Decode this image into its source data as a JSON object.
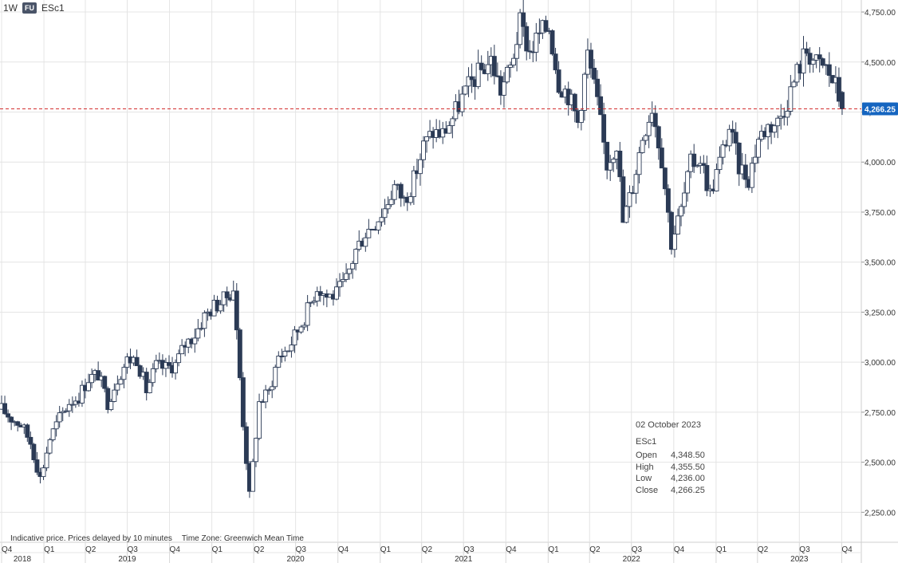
{
  "header": {
    "interval": "1W",
    "badge": "FU",
    "symbol": "ESc1"
  },
  "notice": {
    "delay": "Indicative price. Prices delayed by 10 minutes",
    "timezone": "Time Zone: Greenwich Mean Time"
  },
  "tooltip": {
    "date": "02 October 2023",
    "symbol": "ESc1",
    "rows": [
      {
        "label": "Open",
        "value": "4,348.50"
      },
      {
        "label": "High",
        "value": "4,355.50"
      },
      {
        "label": "Low",
        "value": "4,236.00"
      },
      {
        "label": "Close",
        "value": "4,266.25"
      }
    ]
  },
  "colors": {
    "candle": "#2b3a55",
    "grid": "#e4e4e4",
    "price_line": "#d32f2f",
    "price_label": "#1565c0"
  },
  "chart_data": {
    "type": "candlestick",
    "interval": "1W",
    "y_axis": {
      "range": [
        2100,
        4810
      ],
      "ticks": [
        2250,
        2500,
        2750,
        3000,
        3250,
        3500,
        3750,
        4000,
        4250,
        4500,
        4750
      ],
      "tick_labels": [
        "2,250.00",
        "2,500.00",
        "2,750.00",
        "3,000.00",
        "3,250.00",
        "3,500.00",
        "3,750.00",
        "4,000.00",
        "4,250.00",
        "4,500.00",
        "4,750.00"
      ]
    },
    "x_axis": {
      "start": "2018-10-01",
      "end": "2023-10-09",
      "quarters": [
        {
          "date": "2018-10-01",
          "label": "Q4"
        },
        {
          "date": "2019-01-01",
          "label": "Q1"
        },
        {
          "date": "2019-04-01",
          "label": "Q2"
        },
        {
          "date": "2019-07-01",
          "label": "Q3"
        },
        {
          "date": "2019-10-01",
          "label": "Q4"
        },
        {
          "date": "2020-01-01",
          "label": "Q1"
        },
        {
          "date": "2020-04-01",
          "label": "Q2"
        },
        {
          "date": "2020-07-01",
          "label": "Q3"
        },
        {
          "date": "2020-10-01",
          "label": "Q4"
        },
        {
          "date": "2021-01-01",
          "label": "Q1"
        },
        {
          "date": "2021-04-01",
          "label": "Q2"
        },
        {
          "date": "2021-07-01",
          "label": "Q3"
        },
        {
          "date": "2021-10-01",
          "label": "Q4"
        },
        {
          "date": "2022-01-01",
          "label": "Q1"
        },
        {
          "date": "2022-04-01",
          "label": "Q2"
        },
        {
          "date": "2022-07-01",
          "label": "Q3"
        },
        {
          "date": "2022-10-01",
          "label": "Q4"
        },
        {
          "date": "2023-01-01",
          "label": "Q1"
        },
        {
          "date": "2023-04-01",
          "label": "Q2"
        },
        {
          "date": "2023-07-01",
          "label": "Q3"
        },
        {
          "date": "2023-10-01",
          "label": "Q4"
        }
      ],
      "years": [
        {
          "date": "2018-11-15",
          "label": "2018"
        },
        {
          "date": "2019-07-01",
          "label": "2019"
        },
        {
          "date": "2020-07-01",
          "label": "2020"
        },
        {
          "date": "2021-07-01",
          "label": "2021"
        },
        {
          "date": "2022-07-01",
          "label": "2022"
        },
        {
          "date": "2023-07-01",
          "label": "2023"
        }
      ]
    },
    "last_price": 4266.25,
    "last_price_label": "4,266.25",
    "series": [
      {
        "date": "2018-10-01",
        "close": 2765
      },
      {
        "date": "2018-10-22",
        "close": 2720
      },
      {
        "date": "2018-11-12",
        "close": 2690
      },
      {
        "date": "2018-12-03",
        "close": 2600
      },
      {
        "date": "2018-12-24",
        "close": 2420
      },
      {
        "date": "2019-01-14",
        "close": 2620
      },
      {
        "date": "2019-02-04",
        "close": 2720
      },
      {
        "date": "2019-02-25",
        "close": 2800
      },
      {
        "date": "2019-03-18",
        "close": 2830
      },
      {
        "date": "2019-04-08",
        "close": 2920
      },
      {
        "date": "2019-04-29",
        "close": 2940
      },
      {
        "date": "2019-05-20",
        "close": 2800
      },
      {
        "date": "2019-06-10",
        "close": 2920
      },
      {
        "date": "2019-07-01",
        "close": 3010
      },
      {
        "date": "2019-07-22",
        "close": 3020
      },
      {
        "date": "2019-08-12",
        "close": 2860
      },
      {
        "date": "2019-09-02",
        "close": 2980
      },
      {
        "date": "2019-09-23",
        "close": 2970
      },
      {
        "date": "2019-10-14",
        "close": 2990
      },
      {
        "date": "2019-11-04",
        "close": 3090
      },
      {
        "date": "2019-11-25",
        "close": 3140
      },
      {
        "date": "2019-12-16",
        "close": 3230
      },
      {
        "date": "2020-01-06",
        "close": 3280
      },
      {
        "date": "2020-01-27",
        "close": 3310
      },
      {
        "date": "2020-02-17",
        "close": 3370
      },
      {
        "date": "2020-03-09",
        "close": 2700
      },
      {
        "date": "2020-03-23",
        "close": 2330
      },
      {
        "date": "2020-04-13",
        "close": 2800
      },
      {
        "date": "2020-05-04",
        "close": 2850
      },
      {
        "date": "2020-05-25",
        "close": 3030
      },
      {
        "date": "2020-06-15",
        "close": 3070
      },
      {
        "date": "2020-07-06",
        "close": 3160
      },
      {
        "date": "2020-07-27",
        "close": 3260
      },
      {
        "date": "2020-08-17",
        "close": 3380
      },
      {
        "date": "2020-09-07",
        "close": 3330
      },
      {
        "date": "2020-09-28",
        "close": 3340
      },
      {
        "date": "2020-10-19",
        "close": 3410
      },
      {
        "date": "2020-11-09",
        "close": 3560
      },
      {
        "date": "2020-11-30",
        "close": 3650
      },
      {
        "date": "2020-12-21",
        "close": 3700
      },
      {
        "date": "2021-01-11",
        "close": 3770
      },
      {
        "date": "2021-02-01",
        "close": 3880
      },
      {
        "date": "2021-02-22",
        "close": 3810
      },
      {
        "date": "2021-03-15",
        "close": 3910
      },
      {
        "date": "2021-04-05",
        "close": 4080
      },
      {
        "date": "2021-04-26",
        "close": 4150
      },
      {
        "date": "2021-05-17",
        "close": 4140
      },
      {
        "date": "2021-06-07",
        "close": 4220
      },
      {
        "date": "2021-06-28",
        "close": 4320
      },
      {
        "date": "2021-07-19",
        "close": 4400
      },
      {
        "date": "2021-08-09",
        "close": 4460
      },
      {
        "date": "2021-08-30",
        "close": 4510
      },
      {
        "date": "2021-09-20",
        "close": 4360
      },
      {
        "date": "2021-10-11",
        "close": 4470
      },
      {
        "date": "2021-11-01",
        "close": 4690
      },
      {
        "date": "2021-11-22",
        "close": 4550
      },
      {
        "date": "2021-12-13",
        "close": 4640
      },
      {
        "date": "2022-01-03",
        "close": 4680
      },
      {
        "date": "2022-01-24",
        "close": 4400
      },
      {
        "date": "2022-02-14",
        "close": 4340
      },
      {
        "date": "2022-03-07",
        "close": 4200
      },
      {
        "date": "2022-03-28",
        "close": 4540
      },
      {
        "date": "2022-04-18",
        "close": 4290
      },
      {
        "date": "2022-05-09",
        "close": 3990
      },
      {
        "date": "2022-05-30",
        "close": 4100
      },
      {
        "date": "2022-06-13",
        "close": 3700
      },
      {
        "date": "2022-07-04",
        "close": 3880
      },
      {
        "date": "2022-07-25",
        "close": 4130
      },
      {
        "date": "2022-08-15",
        "close": 4280
      },
      {
        "date": "2022-09-05",
        "close": 4020
      },
      {
        "date": "2022-09-26",
        "close": 3600
      },
      {
        "date": "2022-10-17",
        "close": 3760
      },
      {
        "date": "2022-11-07",
        "close": 3990
      },
      {
        "date": "2022-11-28",
        "close": 4020
      },
      {
        "date": "2022-12-19",
        "close": 3840
      },
      {
        "date": "2023-01-09",
        "close": 4000
      },
      {
        "date": "2023-01-30",
        "close": 4170
      },
      {
        "date": "2023-02-20",
        "close": 3980
      },
      {
        "date": "2023-03-13",
        "close": 3920
      },
      {
        "date": "2023-04-03",
        "close": 4120
      },
      {
        "date": "2023-04-24",
        "close": 4180
      },
      {
        "date": "2023-05-15",
        "close": 4200
      },
      {
        "date": "2023-06-05",
        "close": 4310
      },
      {
        "date": "2023-06-26",
        "close": 4450
      },
      {
        "date": "2023-07-17",
        "close": 4560
      },
      {
        "date": "2023-08-07",
        "close": 4490
      },
      {
        "date": "2023-08-28",
        "close": 4470
      },
      {
        "date": "2023-09-18",
        "close": 4380
      },
      {
        "date": "2023-10-02",
        "open": 4348.5,
        "high": 4355.5,
        "low": 4236.0,
        "close": 4266.25
      }
    ]
  }
}
